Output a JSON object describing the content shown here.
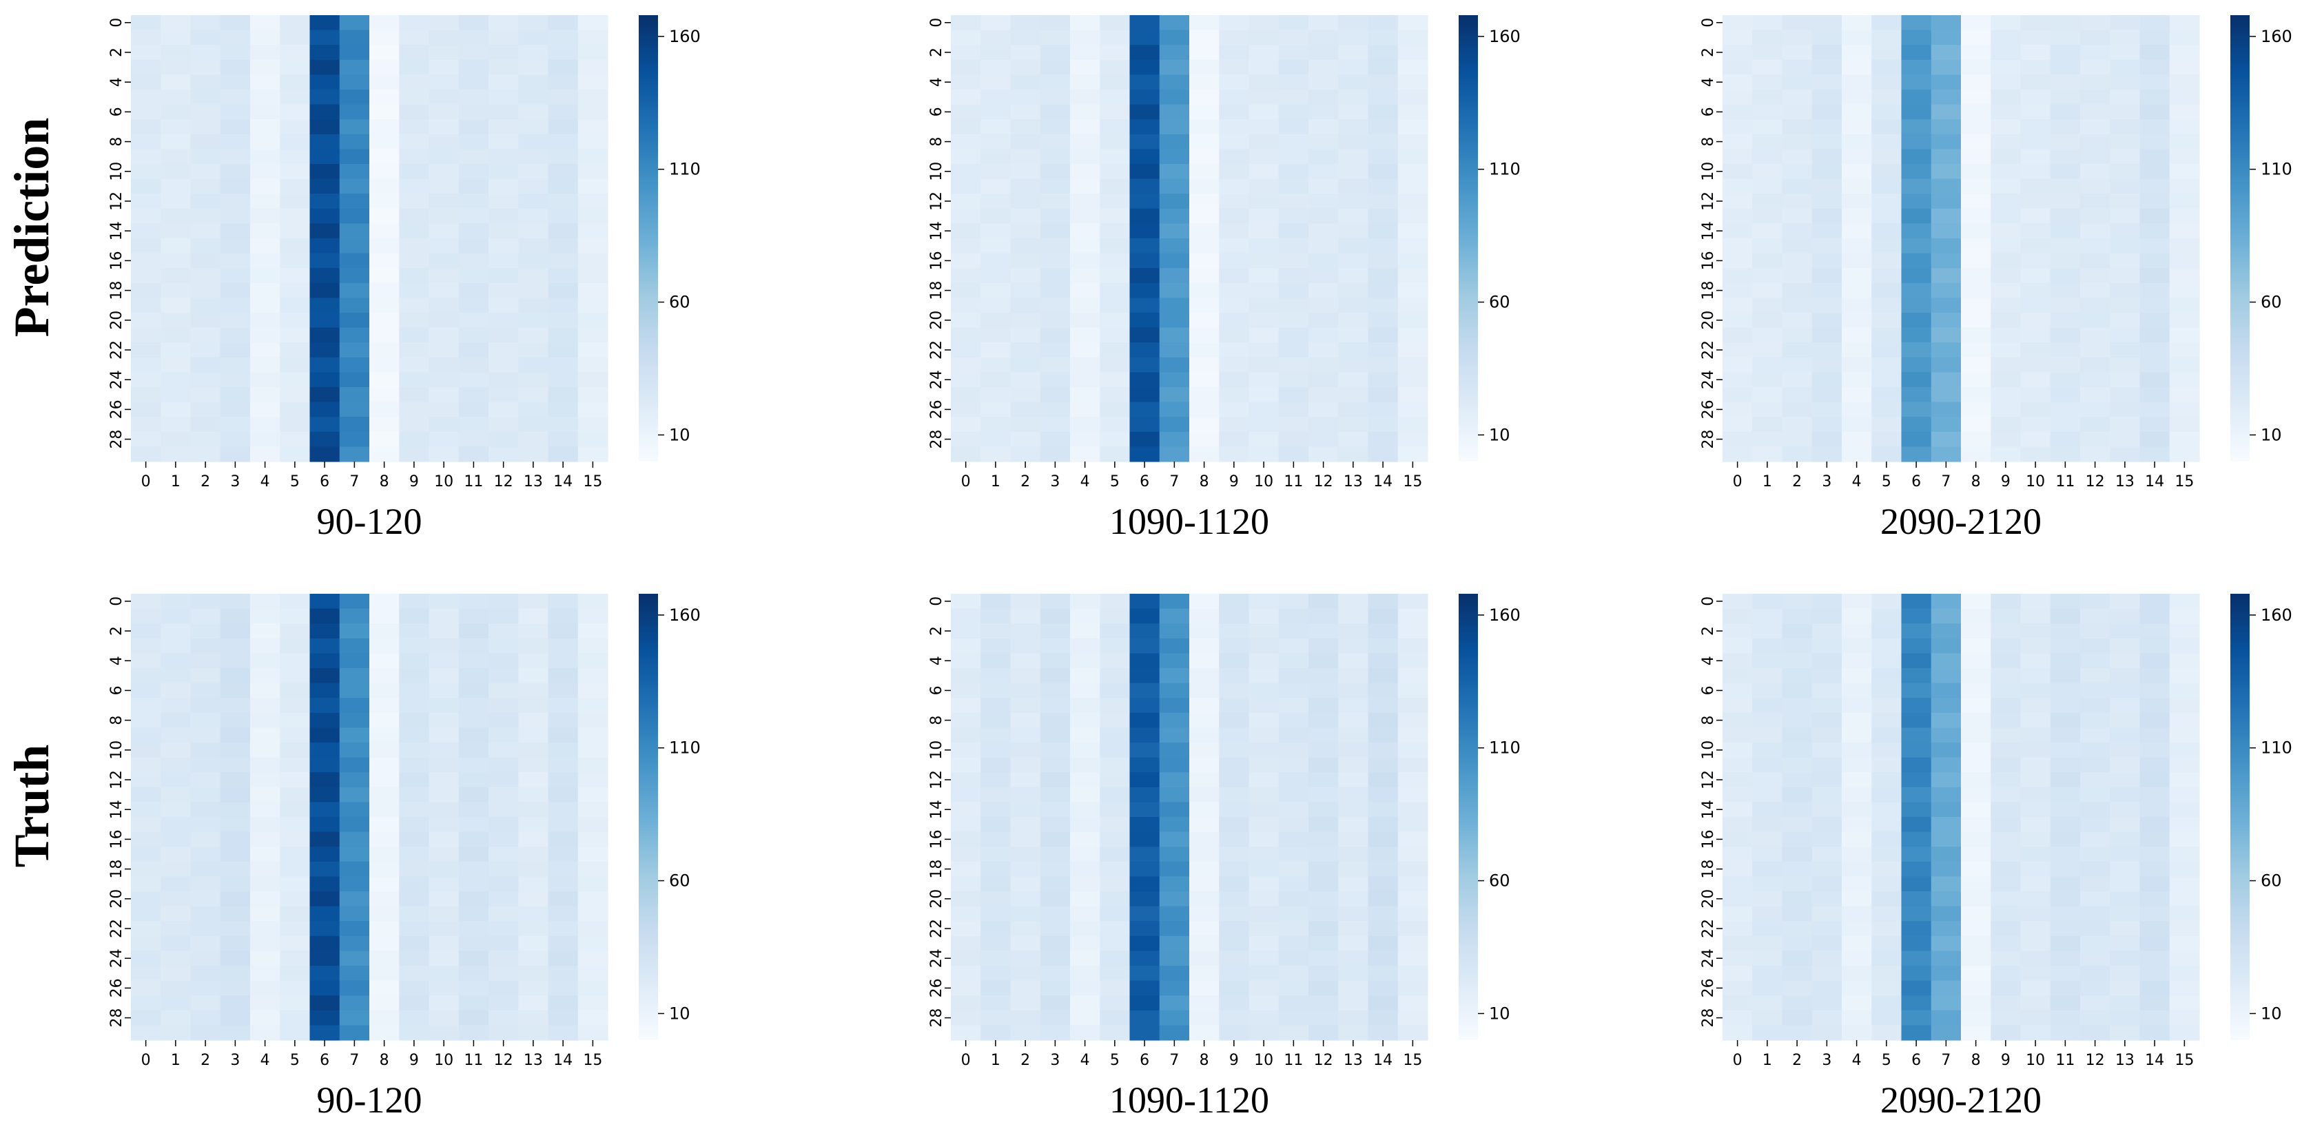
{
  "row_labels": [
    "Prediction",
    "Truth"
  ],
  "chart_data": [
    {
      "type": "heatmap",
      "row": "Prediction",
      "xlabel": "90-120",
      "x": [
        "0",
        "1",
        "2",
        "3",
        "4",
        "5",
        "6",
        "7",
        "8",
        "9",
        "10",
        "11",
        "12",
        "13",
        "14",
        "15"
      ],
      "y": [
        "0",
        "2",
        "4",
        "6",
        "8",
        "10",
        "12",
        "14",
        "16",
        "18",
        "20",
        "22",
        "24",
        "26",
        "28"
      ],
      "column_values": [
        22,
        20,
        23,
        27,
        10,
        19,
        150,
        112,
        5,
        23,
        22,
        26,
        22,
        23,
        28,
        15
      ],
      "colorbar": {
        "ticks": [
          10,
          60,
          110,
          160
        ],
        "range": [
          0,
          168
        ],
        "colormap": "Blues"
      }
    },
    {
      "type": "heatmap",
      "row": "Prediction",
      "xlabel": "1090-1120",
      "x": [
        "0",
        "1",
        "2",
        "3",
        "4",
        "5",
        "6",
        "7",
        "8",
        "9",
        "10",
        "11",
        "12",
        "13",
        "14",
        "15"
      ],
      "y": [
        "0",
        "2",
        "4",
        "6",
        "8",
        "10",
        "12",
        "14",
        "16",
        "18",
        "20",
        "22",
        "24",
        "26",
        "28"
      ],
      "column_values": [
        20,
        20,
        22,
        26,
        10,
        20,
        145,
        100,
        6,
        21,
        20,
        24,
        22,
        22,
        28,
        15
      ],
      "colorbar": {
        "ticks": [
          10,
          60,
          110,
          160
        ],
        "range": [
          0,
          168
        ],
        "colormap": "Blues"
      }
    },
    {
      "type": "heatmap",
      "row": "Prediction",
      "xlabel": "2090-2120",
      "x": [
        "0",
        "1",
        "2",
        "3",
        "4",
        "5",
        "6",
        "7",
        "8",
        "9",
        "10",
        "11",
        "12",
        "13",
        "14",
        "15"
      ],
      "y": [
        "0",
        "2",
        "4",
        "6",
        "8",
        "10",
        "12",
        "14",
        "16",
        "18",
        "20",
        "22",
        "24",
        "26",
        "28"
      ],
      "column_values": [
        18,
        20,
        22,
        27,
        10,
        24,
        100,
        82,
        6,
        20,
        20,
        24,
        22,
        22,
        30,
        15
      ],
      "colorbar": {
        "ticks": [
          10,
          60,
          110,
          160
        ],
        "range": [
          0,
          168
        ],
        "colormap": "Blues"
      }
    },
    {
      "type": "heatmap",
      "row": "Truth",
      "xlabel": "90-120",
      "x": [
        "0",
        "1",
        "2",
        "3",
        "4",
        "5",
        "6",
        "7",
        "8",
        "9",
        "10",
        "11",
        "12",
        "13",
        "14",
        "15"
      ],
      "y": [
        "0",
        "2",
        "4",
        "6",
        "8",
        "10",
        "12",
        "14",
        "16",
        "18",
        "20",
        "22",
        "24",
        "26",
        "28"
      ],
      "column_values": [
        24,
        24,
        26,
        32,
        12,
        20,
        150,
        108,
        8,
        28,
        22,
        30,
        26,
        20,
        30,
        15
      ],
      "colorbar": {
        "ticks": [
          10,
          60,
          110,
          160
        ],
        "range": [
          0,
          168
        ],
        "colormap": "Blues"
      }
    },
    {
      "type": "heatmap",
      "row": "Truth",
      "xlabel": "1090-1120",
      "x": [
        "0",
        "1",
        "2",
        "3",
        "4",
        "5",
        "6",
        "7",
        "8",
        "9",
        "10",
        "11",
        "12",
        "13",
        "14",
        "15"
      ],
      "y": [
        "0",
        "2",
        "4",
        "6",
        "8",
        "10",
        "12",
        "14",
        "16",
        "18",
        "20",
        "22",
        "24",
        "26",
        "28"
      ],
      "column_values": [
        20,
        28,
        22,
        30,
        12,
        24,
        140,
        104,
        10,
        28,
        22,
        26,
        30,
        22,
        34,
        18
      ],
      "colorbar": {
        "ticks": [
          10,
          60,
          110,
          160
        ],
        "range": [
          0,
          168
        ],
        "colormap": "Blues"
      }
    },
    {
      "type": "heatmap",
      "row": "Truth",
      "xlabel": "2090-2120",
      "x": [
        "0",
        "1",
        "2",
        "3",
        "4",
        "5",
        "6",
        "7",
        "8",
        "9",
        "10",
        "11",
        "12",
        "13",
        "14",
        "15"
      ],
      "y": [
        "0",
        "2",
        "4",
        "6",
        "8",
        "10",
        "12",
        "14",
        "16",
        "18",
        "20",
        "22",
        "24",
        "26",
        "28"
      ],
      "column_values": [
        20,
        24,
        28,
        26,
        12,
        24,
        112,
        86,
        8,
        26,
        22,
        30,
        26,
        24,
        32,
        16
      ],
      "colorbar": {
        "ticks": [
          10,
          60,
          110,
          160
        ],
        "range": [
          0,
          168
        ],
        "colormap": "Blues"
      }
    }
  ]
}
